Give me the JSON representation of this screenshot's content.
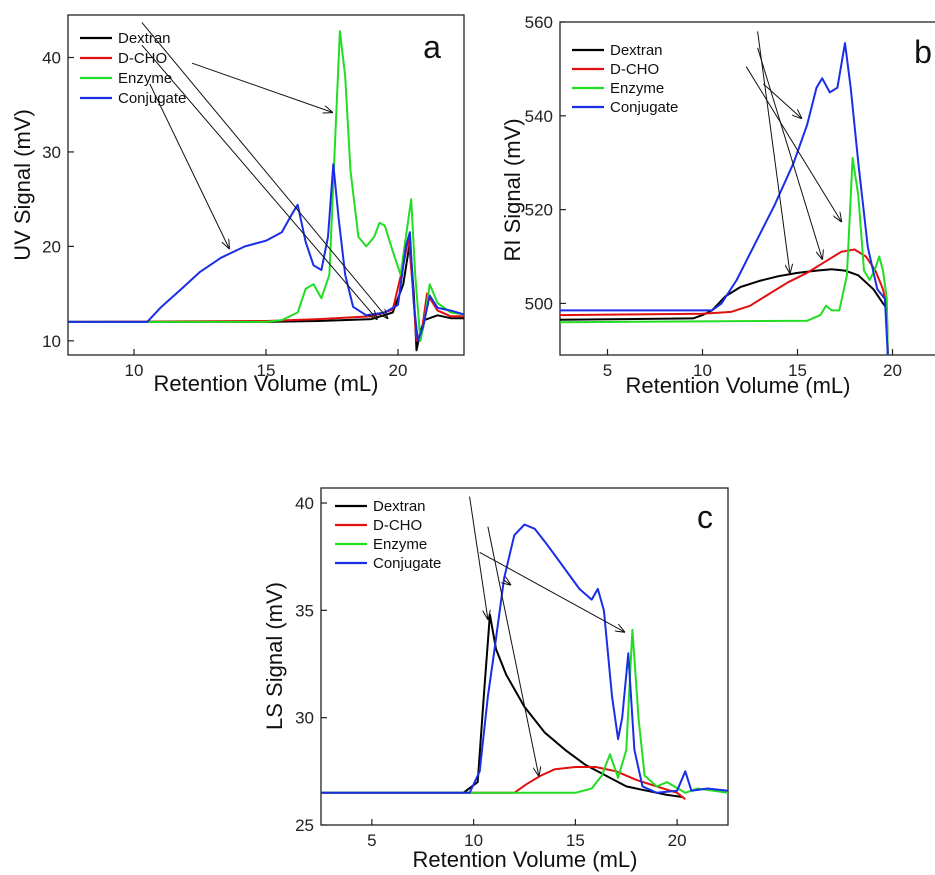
{
  "chart_data": [
    {
      "panel": "a",
      "type": "line",
      "xlabel": "Retention Volume (mL)",
      "ylabel": "UV Signal (mV)",
      "xlim": [
        7.5,
        22.5
      ],
      "ylim": [
        8.5,
        44.5
      ],
      "xticks": [
        10,
        15,
        20
      ],
      "yticks": [
        10,
        20,
        30,
        40
      ],
      "legend": "top-left",
      "grid": false,
      "series": [
        {
          "name": "Dextran",
          "color": "#000000",
          "points": [
            [
              7.5,
              12
            ],
            [
              15,
              12.0
            ],
            [
              17,
              12.1
            ],
            [
              19,
              12.3
            ],
            [
              19.8,
              13
            ],
            [
              20.2,
              16
            ],
            [
              20.45,
              20.5
            ],
            [
              20.6,
              15
            ],
            [
              20.7,
              9
            ],
            [
              20.85,
              11
            ],
            [
              21,
              12.2
            ],
            [
              21.5,
              12.7
            ],
            [
              22,
              12.4
            ],
            [
              22.5,
              12.4
            ]
          ]
        },
        {
          "name": "D-CHO",
          "color": "#e01010",
          "points": [
            [
              7.5,
              12
            ],
            [
              15,
              12.1
            ],
            [
              17,
              12.3
            ],
            [
              19,
              12.6
            ],
            [
              19.8,
              13.3
            ],
            [
              20.2,
              18
            ],
            [
              20.4,
              21
            ],
            [
              20.55,
              16
            ],
            [
              20.7,
              10
            ],
            [
              20.9,
              11
            ],
            [
              21.1,
              15
            ],
            [
              21.5,
              13.2
            ],
            [
              22,
              12.6
            ],
            [
              22.5,
              12.6
            ]
          ]
        },
        {
          "name": "Enzyme",
          "color": "#22dd22",
          "points": [
            [
              7.5,
              12
            ],
            [
              15,
              12
            ],
            [
              15.6,
              12.2
            ],
            [
              16.2,
              13
            ],
            [
              16.5,
              15.5
            ],
            [
              16.8,
              16
            ],
            [
              17.1,
              14.5
            ],
            [
              17.4,
              17
            ],
            [
              17.6,
              30
            ],
            [
              17.8,
              42.8
            ],
            [
              18.0,
              38
            ],
            [
              18.2,
              28
            ],
            [
              18.5,
              21
            ],
            [
              18.8,
              20
            ],
            [
              19.1,
              21
            ],
            [
              19.3,
              22.5
            ],
            [
              19.5,
              22.2
            ],
            [
              19.8,
              19.5
            ],
            [
              20.1,
              17
            ],
            [
              20.3,
              21
            ],
            [
              20.5,
              25
            ],
            [
              20.65,
              17
            ],
            [
              20.85,
              10
            ],
            [
              21.0,
              12
            ],
            [
              21.2,
              16
            ],
            [
              21.5,
              14
            ],
            [
              22,
              13
            ],
            [
              22.5,
              12.8
            ]
          ]
        },
        {
          "name": "Conjugate",
          "color": "#1a2ee8",
          "points": [
            [
              7.5,
              12
            ],
            [
              10.5,
              12
            ],
            [
              11,
              13.5
            ],
            [
              11.8,
              15.5
            ],
            [
              12.5,
              17.3
            ],
            [
              13.3,
              18.8
            ],
            [
              14.2,
              20
            ],
            [
              15,
              20.6
            ],
            [
              15.6,
              21.5
            ],
            [
              16.0,
              23.5
            ],
            [
              16.2,
              24.4
            ],
            [
              16.5,
              20.5
            ],
            [
              16.8,
              18
            ],
            [
              17.1,
              17.5
            ],
            [
              17.35,
              21
            ],
            [
              17.55,
              28.7
            ],
            [
              17.75,
              23
            ],
            [
              18.0,
              17
            ],
            [
              18.3,
              13.6
            ],
            [
              18.8,
              12.7
            ],
            [
              19.5,
              13
            ],
            [
              20,
              13.8
            ],
            [
              20.3,
              20
            ],
            [
              20.45,
              21.5
            ],
            [
              20.6,
              14
            ],
            [
              20.75,
              10
            ],
            [
              20.95,
              11.5
            ],
            [
              21.2,
              14.8
            ],
            [
              21.5,
              13.5
            ],
            [
              22,
              13.2
            ],
            [
              22.5,
              12.8
            ]
          ]
        }
      ],
      "annotations": {
        "letter": "a"
      }
    },
    {
      "panel": "b",
      "type": "line",
      "xlabel": "Retention Volume (mL)",
      "ylabel": "RI Signal (mV)",
      "xlim": [
        2.5,
        22.5
      ],
      "ylim": [
        489,
        560
      ],
      "xticks": [
        5,
        10,
        15,
        20
      ],
      "yticks": [
        500,
        520,
        540,
        560
      ],
      "legend": "top-left",
      "grid": false,
      "series": [
        {
          "name": "Dextran",
          "color": "#000000",
          "points": [
            [
              2.5,
              496.5
            ],
            [
              9.5,
              496.8
            ],
            [
              10.0,
              497.5
            ],
            [
              10.5,
              498.5
            ],
            [
              11.2,
              501.5
            ],
            [
              12,
              503.5
            ],
            [
              13,
              504.8
            ],
            [
              14,
              505.8
            ],
            [
              15,
              506.5
            ],
            [
              16,
              507
            ],
            [
              16.8,
              507.3
            ],
            [
              17.5,
              507
            ],
            [
              18.2,
              506
            ],
            [
              19,
              503
            ],
            [
              19.5,
              500
            ],
            [
              19.7,
              499
            ],
            [
              19.75,
              489
            ]
          ]
        },
        {
          "name": "D-CHO",
          "color": "#e01010",
          "points": [
            [
              2.5,
              497.5
            ],
            [
              10,
              497.8
            ],
            [
              11.5,
              498.2
            ],
            [
              12.5,
              499.5
            ],
            [
              13.5,
              502
            ],
            [
              14.5,
              504.5
            ],
            [
              15.5,
              506.5
            ],
            [
              16.5,
              509
            ],
            [
              17.3,
              511
            ],
            [
              18.0,
              511.5
            ],
            [
              18.6,
              510
            ],
            [
              19.1,
              507
            ],
            [
              19.5,
              503
            ],
            [
              19.7,
              499
            ],
            [
              19.75,
              489
            ]
          ]
        },
        {
          "name": "Enzyme",
          "color": "#22dd22",
          "points": [
            [
              2.5,
              496
            ],
            [
              15.5,
              496.3
            ],
            [
              16.2,
              497.5
            ],
            [
              16.5,
              499.5
            ],
            [
              16.8,
              498.5
            ],
            [
              17.2,
              498.5
            ],
            [
              17.6,
              506
            ],
            [
              17.9,
              531
            ],
            [
              18.2,
              523
            ],
            [
              18.5,
              507
            ],
            [
              18.8,
              505
            ],
            [
              19.1,
              507.5
            ],
            [
              19.3,
              510
            ],
            [
              19.5,
              507
            ],
            [
              19.7,
              501
            ],
            [
              19.75,
              489
            ]
          ]
        },
        {
          "name": "Conjugate",
          "color": "#1a2ee8",
          "points": [
            [
              2.5,
              498.5
            ],
            [
              10.5,
              498.5
            ],
            [
              11,
              500
            ],
            [
              11.8,
              505
            ],
            [
              12.8,
              513
            ],
            [
              13.8,
              521
            ],
            [
              14.8,
              530
            ],
            [
              15.5,
              538
            ],
            [
              16.0,
              546
            ],
            [
              16.3,
              548
            ],
            [
              16.7,
              545
            ],
            [
              17.1,
              546
            ],
            [
              17.5,
              555.5
            ],
            [
              17.8,
              546
            ],
            [
              18.2,
              530
            ],
            [
              18.7,
              512
            ],
            [
              19.2,
              503
            ],
            [
              19.6,
              501
            ],
            [
              19.75,
              489
            ]
          ]
        }
      ],
      "annotations": {
        "letter": "b"
      }
    },
    {
      "panel": "c",
      "type": "line",
      "xlabel": "Retention Volume (mL)",
      "ylabel": "LS Signal (mV)",
      "xlim": [
        2.5,
        22.5
      ],
      "ylim": [
        25,
        40.7
      ],
      "xticks": [
        5,
        10,
        15,
        20
      ],
      "yticks": [
        25,
        30,
        35,
        40
      ],
      "legend": "top-left",
      "grid": false,
      "series": [
        {
          "name": "Dextran",
          "color": "#000000",
          "points": [
            [
              2.5,
              26.5
            ],
            [
              9.5,
              26.5
            ],
            [
              10.2,
              27
            ],
            [
              10.5,
              31
            ],
            [
              10.8,
              34.8
            ],
            [
              11.1,
              33.2
            ],
            [
              11.6,
              32
            ],
            [
              12.5,
              30.5
            ],
            [
              13.5,
              29.3
            ],
            [
              14.5,
              28.5
            ],
            [
              15.5,
              27.8
            ],
            [
              16.5,
              27.3
            ],
            [
              17.5,
              26.8
            ],
            [
              18.5,
              26.6
            ],
            [
              19.5,
              26.4
            ],
            [
              20.3,
              26.3
            ]
          ]
        },
        {
          "name": "D-CHO",
          "color": "#e01010",
          "points": [
            [
              2.5,
              26.5
            ],
            [
              11,
              26.5
            ],
            [
              12,
              26.5
            ],
            [
              12.6,
              26.9
            ],
            [
              13.3,
              27.3
            ],
            [
              14,
              27.6
            ],
            [
              15,
              27.7
            ],
            [
              16,
              27.7
            ],
            [
              17,
              27.5
            ],
            [
              18,
              27.1
            ],
            [
              19,
              26.8
            ],
            [
              20,
              26.5
            ],
            [
              20.4,
              26.2
            ]
          ]
        },
        {
          "name": "Enzyme",
          "color": "#22dd22",
          "points": [
            [
              2.5,
              26.5
            ],
            [
              15,
              26.5
            ],
            [
              15.8,
              26.7
            ],
            [
              16.3,
              27.3
            ],
            [
              16.7,
              28.3
            ],
            [
              17.1,
              27.2
            ],
            [
              17.5,
              28.5
            ],
            [
              17.8,
              34.1
            ],
            [
              18.1,
              30
            ],
            [
              18.4,
              27.3
            ],
            [
              19,
              26.8
            ],
            [
              19.5,
              27
            ],
            [
              20.4,
              26.5
            ],
            [
              21,
              26.7
            ],
            [
              22.5,
              26.5
            ]
          ]
        },
        {
          "name": "Conjugate",
          "color": "#1a2ee8",
          "points": [
            [
              2.5,
              26.5
            ],
            [
              9.8,
              26.5
            ],
            [
              10.3,
              27.5
            ],
            [
              10.7,
              31
            ],
            [
              11.0,
              33
            ],
            [
              11.5,
              36.5
            ],
            [
              12,
              38.5
            ],
            [
              12.5,
              39
            ],
            [
              13,
              38.8
            ],
            [
              13.5,
              38.2
            ],
            [
              14.2,
              37.3
            ],
            [
              15.2,
              36
            ],
            [
              15.8,
              35.5
            ],
            [
              16.1,
              36
            ],
            [
              16.4,
              35
            ],
            [
              16.8,
              31
            ],
            [
              17.1,
              29
            ],
            [
              17.3,
              30
            ],
            [
              17.6,
              33
            ],
            [
              17.9,
              28.5
            ],
            [
              18.3,
              26.8
            ],
            [
              19,
              26.5
            ],
            [
              20,
              26.6
            ],
            [
              20.4,
              27.5
            ],
            [
              20.7,
              26.6
            ],
            [
              21.5,
              26.7
            ],
            [
              22.5,
              26.6
            ]
          ]
        }
      ],
      "annotations": {
        "letter": "c"
      }
    }
  ]
}
